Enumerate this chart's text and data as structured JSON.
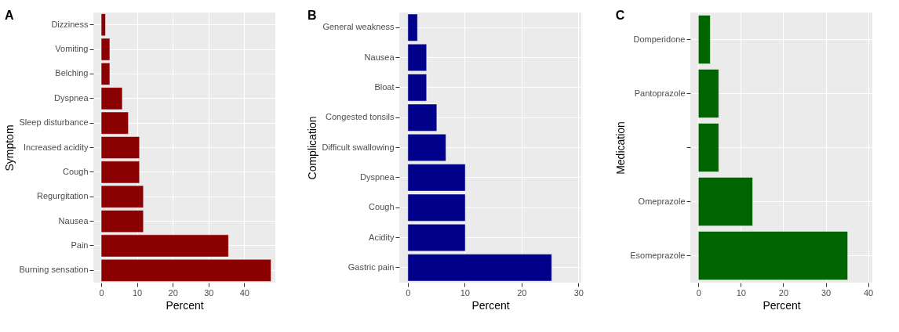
{
  "chart_data": [
    {
      "type": "bar",
      "orientation": "horizontal",
      "title": "A",
      "xlabel": "Percent",
      "ylabel": "Symptom",
      "categories": [
        "Dizziness",
        "Vomiting",
        "Belching",
        "Dyspnea",
        "Sleep disturbance",
        "Increased acidity",
        "Cough",
        "Regurgitation",
        "Nausea",
        "Pain",
        "Burning sensation"
      ],
      "values": [
        1.2,
        2.4,
        2.4,
        5.9,
        7.6,
        10.7,
        10.7,
        11.8,
        11.8,
        35.6,
        47.5
      ],
      "color": "#8b0000",
      "xlim": [
        -2.2,
        48.7
      ],
      "xticks": [
        0,
        10,
        20,
        30,
        40
      ],
      "grid": true
    },
    {
      "type": "bar",
      "orientation": "horizontal",
      "title": "B",
      "xlabel": "Percent",
      "ylabel": "Complication",
      "categories": [
        "General weakness",
        "Nausea",
        "Bloat",
        "Congested tonsils",
        "Difficult swallowing",
        "Dyspnea",
        "Cough",
        "Acidity",
        "Gastric pain"
      ],
      "values": [
        1.7,
        3.3,
        3.3,
        5.1,
        6.7,
        10.1,
        10.1,
        10.1,
        25.3
      ],
      "color": "#00008b",
      "xlim": [
        -1.5,
        30.5
      ],
      "xticks": [
        0,
        10,
        20,
        30
      ],
      "grid": true
    },
    {
      "type": "bar",
      "orientation": "horizontal",
      "title": "C",
      "xlabel": "Percent",
      "ylabel": "Medication",
      "categories": [
        "Domperidone",
        "Pantoprazole",
        null,
        "Omeprazole",
        "Esomeprazole"
      ],
      "values": [
        2.8,
        4.8,
        4.8,
        12.8,
        35.2
      ],
      "color": "#006400",
      "xlim": [
        -1.9,
        41
      ],
      "xticks": [
        0,
        10,
        20,
        30,
        40
      ],
      "grid": true
    }
  ]
}
